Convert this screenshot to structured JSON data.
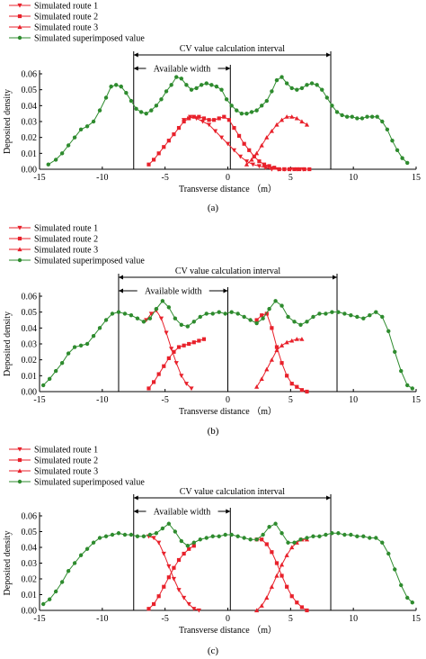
{
  "chart_data": [
    {
      "type": "line",
      "panel_label": "(a)",
      "xlabel": "Transverse distance （m）",
      "ylabel": "Deposited density",
      "xlim": [
        -15,
        15
      ],
      "ylim": [
        0,
        0.06
      ],
      "xticks": [
        "-15",
        "-10",
        "-5",
        "0",
        "5",
        "10",
        "15"
      ],
      "yticks": [
        "0.00",
        "0.01",
        "0.02",
        "0.03",
        "0.04",
        "0.05",
        "0.06"
      ],
      "legend": [
        "Simulated route 1",
        "Simulated route 2",
        "Simulated route 3",
        "Simulated superimposed value"
      ],
      "annotations": {
        "cv_label": "CV value calculation interval",
        "cv_interval": [
          -7.5,
          8.2
        ],
        "available_label": "Available width",
        "available_interval": [
          -7.5,
          0.2
        ]
      },
      "series": [
        {
          "name": "Simulated route 1",
          "marker": "triangle-down",
          "color": "#e8212b",
          "x": [
            -3.5,
            -3.0,
            -2.5,
            -2.0,
            -1.5,
            -1.0,
            -0.5,
            0.0,
            0.5,
            1.0,
            1.5,
            2.0,
            2.5,
            3.0,
            3.5,
            4.0,
            4.5,
            5.0,
            5.5,
            6.0
          ],
          "y": [
            0.031,
            0.033,
            0.032,
            0.03,
            0.028,
            0.024,
            0.02,
            0.016,
            0.012,
            0.008,
            0.005,
            0.003,
            0.002,
            0.001,
            0.0,
            0.0,
            0.0,
            0.0,
            0.0,
            0.0
          ]
        },
        {
          "name": "Simulated route 2",
          "marker": "square",
          "color": "#e8212b",
          "x": [
            -6.3,
            -5.9,
            -5.5,
            -5.1,
            -4.7,
            -4.3,
            -3.9,
            -3.5,
            -3.1,
            -2.7,
            -2.3,
            -1.9,
            -1.5,
            -1.1,
            -0.7,
            -0.3,
            0.1,
            0.5,
            0.9,
            1.3,
            1.7,
            2.1,
            2.5,
            2.9,
            3.3,
            3.7,
            4.1,
            4.5,
            4.9,
            5.3,
            5.7,
            6.1,
            6.5
          ],
          "y": [
            0.003,
            0.006,
            0.01,
            0.014,
            0.018,
            0.022,
            0.026,
            0.03,
            0.032,
            0.033,
            0.033,
            0.032,
            0.031,
            0.031,
            0.032,
            0.033,
            0.031,
            0.026,
            0.021,
            0.016,
            0.012,
            0.008,
            0.005,
            0.003,
            0.002,
            0.001,
            0.0,
            0.0,
            0.0,
            0.0,
            0.0,
            0.0,
            0.0
          ]
        },
        {
          "name": "Simulated route 3",
          "marker": "triangle-up",
          "color": "#e8212b",
          "x": [
            1.5,
            1.9,
            2.3,
            2.7,
            3.1,
            3.5,
            3.9,
            4.3,
            4.7,
            5.1,
            5.5,
            5.9,
            6.3
          ],
          "y": [
            0.003,
            0.006,
            0.01,
            0.015,
            0.02,
            0.024,
            0.028,
            0.031,
            0.033,
            0.033,
            0.032,
            0.03,
            0.028
          ]
        },
        {
          "name": "Simulated superimposed value",
          "marker": "circle",
          "color": "#2e8b2e",
          "x": [
            -14.3,
            -13.7,
            -13.2,
            -12.7,
            -12.2,
            -11.7,
            -11.2,
            -10.7,
            -10.2,
            -9.7,
            -9.3,
            -8.9,
            -8.5,
            -8.1,
            -7.7,
            -7.3,
            -6.9,
            -6.5,
            -6.1,
            -5.7,
            -5.3,
            -4.9,
            -4.5,
            -4.1,
            -3.7,
            -3.3,
            -2.9,
            -2.5,
            -2.1,
            -1.7,
            -1.3,
            -0.9,
            -0.5,
            -0.1,
            0.3,
            0.7,
            1.1,
            1.5,
            1.9,
            2.3,
            2.7,
            3.1,
            3.5,
            3.9,
            4.3,
            4.7,
            5.1,
            5.5,
            5.9,
            6.3,
            6.7,
            7.1,
            7.5,
            7.9,
            8.3,
            8.7,
            9.1,
            9.5,
            9.9,
            10.3,
            10.7,
            11.1,
            11.5,
            11.9,
            12.3,
            12.7,
            13.1,
            13.5,
            13.9,
            14.3
          ],
          "y": [
            0.003,
            0.006,
            0.01,
            0.015,
            0.02,
            0.025,
            0.027,
            0.03,
            0.037,
            0.045,
            0.052,
            0.053,
            0.052,
            0.048,
            0.043,
            0.038,
            0.036,
            0.035,
            0.037,
            0.04,
            0.044,
            0.049,
            0.053,
            0.058,
            0.057,
            0.053,
            0.05,
            0.051,
            0.053,
            0.054,
            0.053,
            0.052,
            0.05,
            0.044,
            0.04,
            0.037,
            0.035,
            0.035,
            0.036,
            0.037,
            0.04,
            0.043,
            0.049,
            0.056,
            0.058,
            0.054,
            0.051,
            0.05,
            0.051,
            0.053,
            0.054,
            0.053,
            0.05,
            0.045,
            0.04,
            0.036,
            0.034,
            0.033,
            0.033,
            0.032,
            0.032,
            0.033,
            0.033,
            0.033,
            0.03,
            0.025,
            0.018,
            0.012,
            0.007,
            0.004
          ]
        }
      ]
    },
    {
      "type": "line",
      "panel_label": "(b)",
      "xlabel": "Transverse distance （m）",
      "ylabel": "Deposited density",
      "xlim": [
        -15,
        15
      ],
      "ylim": [
        0,
        0.06
      ],
      "xticks": [
        "-15",
        "-10",
        "-5",
        "0",
        "5",
        "10",
        "15"
      ],
      "yticks": [
        "0.00",
        "0.01",
        "0.02",
        "0.03",
        "0.04",
        "0.05",
        "0.06"
      ],
      "legend": [
        "Simulated route 1",
        "Simulated route 2",
        "Simulated route 3",
        "Simulated superimposed value"
      ],
      "annotations": {
        "cv_label": "CV value calculation interval",
        "cv_interval": [
          -8.7,
          8.7
        ],
        "available_label": "Available width",
        "available_interval": [
          -8.7,
          0.0
        ]
      },
      "series": [
        {
          "name": "Simulated route 1",
          "marker": "triangle-down",
          "color": "#e8212b",
          "x": [
            -6.5,
            -6.1,
            -5.7,
            -5.3,
            -4.9,
            -4.5,
            -4.1,
            -3.7,
            -3.3,
            -2.9
          ],
          "y": [
            0.045,
            0.049,
            0.051,
            0.046,
            0.037,
            0.027,
            0.018,
            0.01,
            0.005,
            0.002
          ]
        },
        {
          "name": "Simulated route 2",
          "marker": "square",
          "color": "#e8212b",
          "x": [
            -6.3,
            -5.9,
            -5.5,
            -5.1,
            -4.7,
            -4.3,
            -3.9,
            -3.5,
            -3.1,
            -2.7,
            -2.3,
            -1.9,
            2.3,
            2.7,
            3.1,
            3.5,
            3.9,
            4.3,
            4.7,
            5.1,
            5.5,
            5.9,
            6.3
          ],
          "y": [
            0.002,
            0.006,
            0.011,
            0.016,
            0.021,
            0.025,
            0.028,
            0.029,
            0.03,
            0.031,
            0.032,
            0.033,
            0.045,
            0.048,
            0.049,
            0.04,
            0.028,
            0.018,
            0.01,
            0.005,
            0.003,
            0.001,
            0.0
          ]
        },
        {
          "name": "Simulated route 3",
          "marker": "triangle-up",
          "color": "#e8212b",
          "x": [
            2.3,
            2.7,
            3.1,
            3.5,
            3.9,
            4.3,
            4.7,
            5.1,
            5.5,
            5.9
          ],
          "y": [
            0.003,
            0.008,
            0.014,
            0.02,
            0.026,
            0.029,
            0.031,
            0.032,
            0.033,
            0.033
          ]
        },
        {
          "name": "Simulated superimposed value",
          "marker": "circle",
          "color": "#2e8b2e",
          "x": [
            -14.7,
            -14.2,
            -13.7,
            -13.2,
            -12.7,
            -12.2,
            -11.7,
            -11.2,
            -10.7,
            -10.2,
            -9.7,
            -9.2,
            -8.7,
            -8.2,
            -7.7,
            -7.2,
            -6.7,
            -6.2,
            -5.7,
            -5.2,
            -4.7,
            -4.2,
            -3.7,
            -3.2,
            -2.7,
            -2.2,
            -1.7,
            -1.2,
            -0.7,
            -0.2,
            0.3,
            0.8,
            1.3,
            1.8,
            2.3,
            2.8,
            3.3,
            3.8,
            4.3,
            4.8,
            5.3,
            5.8,
            6.3,
            6.8,
            7.3,
            7.8,
            8.3,
            8.8,
            9.3,
            9.8,
            10.3,
            10.8,
            11.3,
            11.8,
            12.3,
            12.8,
            13.3,
            13.8,
            14.3,
            14.7
          ],
          "y": [
            0.004,
            0.008,
            0.013,
            0.018,
            0.024,
            0.028,
            0.029,
            0.03,
            0.035,
            0.04,
            0.045,
            0.049,
            0.05,
            0.049,
            0.048,
            0.046,
            0.044,
            0.046,
            0.052,
            0.057,
            0.053,
            0.046,
            0.042,
            0.041,
            0.044,
            0.047,
            0.049,
            0.049,
            0.05,
            0.049,
            0.05,
            0.049,
            0.047,
            0.045,
            0.043,
            0.046,
            0.052,
            0.057,
            0.054,
            0.047,
            0.044,
            0.042,
            0.044,
            0.047,
            0.049,
            0.049,
            0.05,
            0.05,
            0.049,
            0.048,
            0.047,
            0.046,
            0.048,
            0.05,
            0.047,
            0.038,
            0.025,
            0.013,
            0.004,
            0.002
          ]
        }
      ]
    },
    {
      "type": "line",
      "panel_label": "(c)",
      "xlabel": "Transverse distance （m）",
      "ylabel": "Deposited density",
      "xlim": [
        -15,
        15
      ],
      "ylim": [
        0,
        0.06
      ],
      "xticks": [
        "-15",
        "-10",
        "-5",
        "0",
        "5",
        "10",
        "15"
      ],
      "yticks": [
        "0.00",
        "0.01",
        "0.02",
        "0.03",
        "0.04",
        "0.05",
        "0.06"
      ],
      "legend": [
        "Simulated route 1",
        "Simulated route 2",
        "Simulated route 3",
        "Simulated superimposed value"
      ],
      "annotations": {
        "cv_label": "CV value calculation interval",
        "cv_interval": [
          -7.5,
          8.2
        ],
        "available_label": "Available width",
        "available_interval": [
          -7.5,
          0.2
        ]
      },
      "series": [
        {
          "name": "Simulated route 1",
          "marker": "triangle-down",
          "color": "#e8212b",
          "x": [
            -6.3,
            -5.9,
            -5.5,
            -5.1,
            -4.7,
            -4.3,
            -3.9,
            -3.5,
            -3.1,
            -2.7,
            -2.3
          ],
          "y": [
            0.047,
            0.046,
            0.043,
            0.036,
            0.028,
            0.02,
            0.013,
            0.008,
            0.004,
            0.001,
            0.0
          ]
        },
        {
          "name": "Simulated route 2",
          "marker": "square",
          "color": "#e8212b",
          "x": [
            -6.3,
            -5.9,
            -5.5,
            -5.1,
            -4.7,
            -4.3,
            -3.9,
            -3.5,
            -3.1,
            -2.7,
            2.3,
            2.7,
            3.1,
            3.5,
            3.9,
            4.3,
            4.7,
            5.1,
            5.5,
            5.9,
            6.3
          ],
          "y": [
            0.001,
            0.004,
            0.009,
            0.015,
            0.021,
            0.027,
            0.032,
            0.036,
            0.039,
            0.041,
            0.045,
            0.045,
            0.042,
            0.037,
            0.03,
            0.022,
            0.015,
            0.009,
            0.005,
            0.002,
            0.0
          ]
        },
        {
          "name": "Simulated route 3",
          "marker": "triangle-up",
          "color": "#e8212b",
          "x": [
            2.3,
            2.7,
            3.1,
            3.5,
            3.9,
            4.3,
            4.7,
            5.1,
            5.5,
            5.9,
            6.3
          ],
          "y": [
            0.0,
            0.003,
            0.008,
            0.015,
            0.022,
            0.029,
            0.035,
            0.04,
            0.043,
            0.045,
            0.045
          ]
        },
        {
          "name": "Simulated superimposed value",
          "marker": "circle",
          "color": "#2e8b2e",
          "x": [
            -14.7,
            -14.2,
            -13.7,
            -13.2,
            -12.7,
            -12.2,
            -11.7,
            -11.2,
            -10.7,
            -10.2,
            -9.7,
            -9.2,
            -8.7,
            -8.2,
            -7.7,
            -7.2,
            -6.7,
            -6.2,
            -5.7,
            -5.2,
            -4.7,
            -4.2,
            -3.7,
            -3.2,
            -2.7,
            -2.2,
            -1.7,
            -1.2,
            -0.7,
            -0.2,
            0.3,
            0.8,
            1.3,
            1.8,
            2.3,
            2.8,
            3.3,
            3.8,
            4.3,
            4.8,
            5.3,
            5.8,
            6.3,
            6.8,
            7.3,
            7.8,
            8.3,
            8.8,
            9.3,
            9.8,
            10.3,
            10.8,
            11.3,
            11.8,
            12.3,
            12.8,
            13.3,
            13.8,
            14.3,
            14.7
          ],
          "y": [
            0.004,
            0.007,
            0.012,
            0.018,
            0.025,
            0.03,
            0.035,
            0.039,
            0.043,
            0.046,
            0.047,
            0.048,
            0.049,
            0.048,
            0.048,
            0.047,
            0.047,
            0.048,
            0.049,
            0.052,
            0.055,
            0.05,
            0.044,
            0.041,
            0.043,
            0.045,
            0.046,
            0.047,
            0.047,
            0.048,
            0.048,
            0.047,
            0.046,
            0.045,
            0.045,
            0.048,
            0.053,
            0.055,
            0.049,
            0.043,
            0.043,
            0.045,
            0.046,
            0.047,
            0.047,
            0.048,
            0.049,
            0.049,
            0.048,
            0.048,
            0.047,
            0.047,
            0.046,
            0.046,
            0.043,
            0.036,
            0.026,
            0.016,
            0.008,
            0.005
          ]
        }
      ]
    }
  ]
}
